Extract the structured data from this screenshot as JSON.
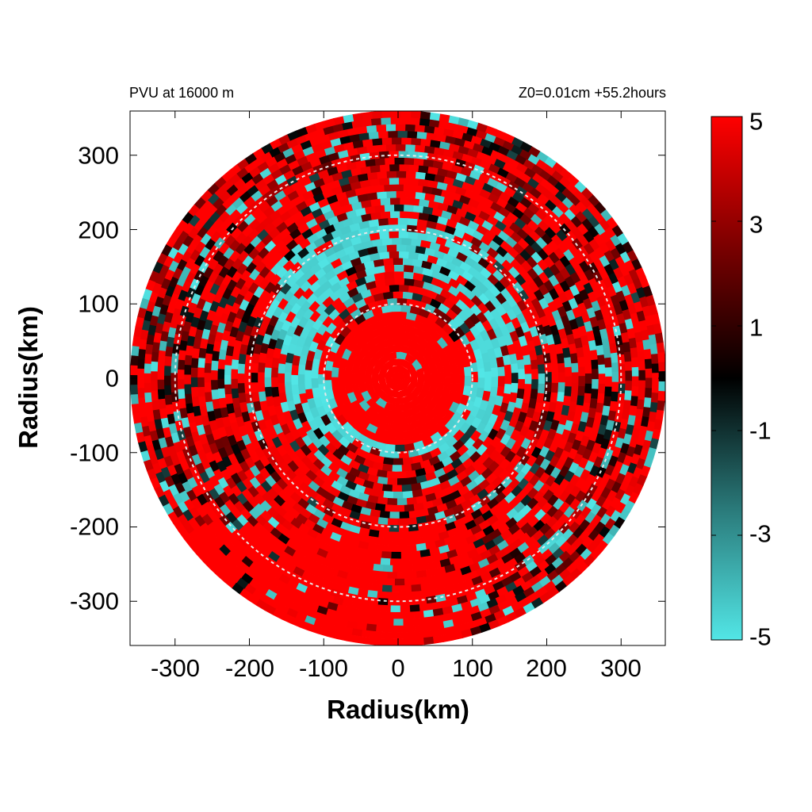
{
  "header": {
    "left": "PVU at 16000 m",
    "right": "Z0=0.01cm  +55.2hours"
  },
  "chart_data": {
    "type": "heatmap",
    "projection": "polar (radius-azimuth) field shown on cartesian axes",
    "variable": "PVU",
    "xlabel": "Radius(km)",
    "ylabel": "Radius(km)",
    "xlim": [
      -360,
      360
    ],
    "ylim": [
      -360,
      360
    ],
    "data_radius_max": 360,
    "x_ticks": [
      "-300",
      "-200",
      "-100",
      "0",
      "100",
      "200",
      "300"
    ],
    "y_ticks": [
      "300",
      "200",
      "100",
      "0",
      "-100",
      "-200",
      "-300"
    ],
    "x_tick_values": [
      -300,
      -200,
      -100,
      0,
      100,
      200,
      300
    ],
    "y_tick_values": [
      300,
      200,
      100,
      0,
      -100,
      -200,
      -300
    ],
    "reference_circles_km": [
      100,
      200,
      300
    ],
    "colorbar": {
      "min": -5,
      "max": 5,
      "ticks": [
        "5",
        "3",
        "1",
        "-1",
        "-3",
        "-5"
      ],
      "tick_values": [
        5,
        3,
        1,
        -1,
        -3,
        -5
      ],
      "colors": {
        "high": "#ff0000",
        "mid_high": "#7a0000",
        "zero": "#000000",
        "mid_low": "#2a7a7a",
        "low": "#52e6e6"
      }
    },
    "features": {
      "cyan_ring_center_km": [
        0,
        60
      ],
      "cyan_ring_radius_km": 130,
      "red_core_radius_km": 90
    }
  }
}
